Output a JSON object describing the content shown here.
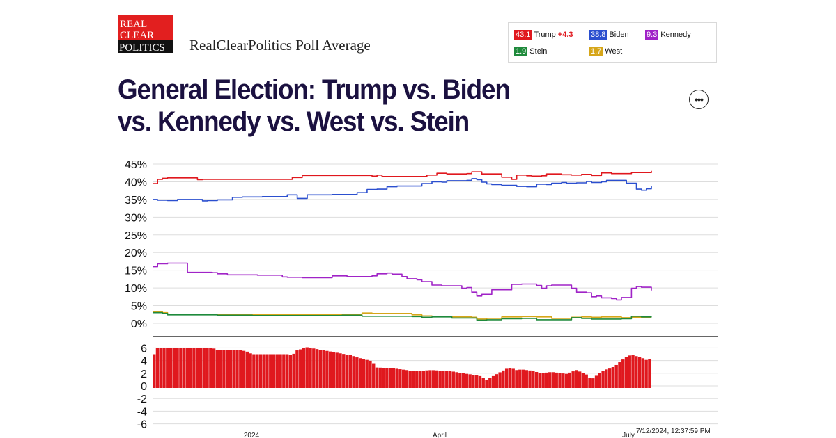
{
  "brand": {
    "logo_lines": [
      "REAL",
      "CLEAR",
      "POLITICS"
    ],
    "caption": "RealClearPolitics Poll Average",
    "colors": {
      "logo_red": "#e21f1f",
      "logo_black": "#111111"
    }
  },
  "legend": [
    {
      "value": "43.1",
      "name": "Trump",
      "lead": "+4.3",
      "color": "#e0181e"
    },
    {
      "value": "38.8",
      "name": "Biden",
      "lead": "",
      "color": "#2b4fcf"
    },
    {
      "value": "9.3",
      "name": "Kennedy",
      "lead": "",
      "color": "#a023c7"
    },
    {
      "value": "1.9",
      "name": "Stein",
      "lead": "",
      "color": "#1f8a3c"
    },
    {
      "value": "1.7",
      "name": "West",
      "lead": "",
      "color": "#d6a619"
    }
  ],
  "title_line1": "General Election: Trump vs. Biden",
  "title_line2": "vs. Kennedy vs. West vs. Stein",
  "more_button_icon": "more-horizontal-icon",
  "more_button_glyph": "•••",
  "timestamp": "7/12/2024, 12:37:59 PM",
  "chart_data": [
    {
      "type": "line",
      "x_tick_labels": [
        "2024",
        "April",
        "July"
      ],
      "y_tick_labels": [
        "45%",
        "40%",
        "35%",
        "30%",
        "25%",
        "20%",
        "15%",
        "10%",
        "5%",
        "0%"
      ],
      "ylim": [
        0,
        45
      ],
      "grid": true,
      "legend_position": "top-right",
      "x_index_range": [
        0,
        100
      ],
      "series": [
        {
          "name": "Trump",
          "color": "#e0181e",
          "x": [
            0,
            1,
            2,
            3,
            8,
            9,
            10,
            20,
            27,
            28,
            30,
            31,
            44,
            45,
            46,
            48,
            54,
            55,
            57,
            59,
            63,
            64,
            66,
            70,
            72,
            73,
            75,
            76,
            78,
            79,
            82,
            84,
            86,
            88,
            90,
            92,
            96,
            98,
            100
          ],
          "y": [
            39.5,
            40.7,
            41.0,
            41.1,
            41.1,
            40.6,
            40.7,
            40.7,
            40.7,
            41.2,
            41.8,
            41.8,
            41.6,
            41.9,
            41.5,
            41.5,
            41.5,
            41.9,
            42.4,
            42.2,
            42.3,
            42.8,
            42.2,
            41.3,
            40.7,
            41.9,
            41.7,
            41.6,
            41.7,
            42.2,
            42.0,
            41.9,
            42.1,
            41.8,
            42.5,
            42.3,
            42.6,
            42.6,
            43.1
          ]
        },
        {
          "name": "Biden",
          "color": "#2b4fcf",
          "x": [
            0,
            1,
            3,
            5,
            8,
            10,
            11,
            13,
            16,
            18,
            22,
            26,
            27,
            29,
            30,
            31,
            36,
            41,
            43,
            45,
            47,
            49,
            54,
            56,
            58,
            59,
            63,
            64,
            65,
            66,
            67,
            68,
            70,
            71,
            73,
            75,
            77,
            79,
            80,
            82,
            83,
            85,
            87,
            88,
            90,
            91,
            93,
            95,
            96,
            97,
            98,
            99,
            100
          ],
          "y": [
            35.0,
            34.8,
            34.7,
            35.0,
            35.0,
            34.6,
            34.7,
            34.9,
            35.6,
            35.7,
            35.8,
            35.8,
            36.3,
            35.3,
            35.3,
            36.3,
            36.4,
            36.9,
            37.8,
            37.9,
            38.6,
            38.8,
            39.5,
            40.0,
            39.9,
            40.3,
            40.4,
            40.9,
            40.6,
            39.9,
            39.4,
            39.2,
            39.0,
            39.0,
            38.7,
            38.6,
            39.3,
            39.2,
            39.6,
            39.8,
            39.6,
            39.7,
            40.1,
            39.8,
            40.0,
            40.4,
            40.4,
            39.6,
            39.6,
            37.9,
            37.6,
            38.0,
            38.8
          ]
        },
        {
          "name": "Kennedy",
          "color": "#a023c7",
          "x": [
            0,
            1,
            2,
            3,
            7,
            8,
            12,
            13,
            15,
            21,
            26,
            27,
            30,
            35,
            36,
            39,
            44,
            45,
            47,
            48,
            50,
            51,
            53,
            54,
            56,
            58,
            62,
            63,
            64,
            65,
            66,
            68,
            72,
            74,
            77,
            78,
            79,
            80,
            84,
            85,
            87,
            88,
            89,
            90,
            92,
            93,
            94,
            96,
            97,
            98,
            100
          ],
          "y": [
            16.0,
            16.8,
            16.8,
            17.0,
            14.4,
            14.4,
            14.3,
            14.0,
            13.7,
            13.6,
            13.1,
            13.0,
            12.9,
            12.9,
            13.4,
            13.2,
            13.4,
            14.0,
            14.2,
            13.9,
            13.2,
            12.6,
            12.3,
            11.8,
            10.8,
            10.6,
            9.9,
            10.1,
            8.8,
            7.7,
            8.2,
            9.5,
            11.0,
            11.1,
            10.7,
            9.9,
            10.6,
            10.8,
            9.9,
            8.8,
            8.6,
            7.5,
            7.7,
            7.2,
            7.0,
            6.6,
            7.3,
            9.9,
            10.4,
            10.2,
            9.3
          ]
        },
        {
          "name": "Stein",
          "color": "#1f8a3c",
          "x": [
            0,
            2,
            3,
            10,
            13,
            20,
            30,
            38,
            40,
            42,
            44,
            52,
            54,
            56,
            60,
            64,
            65,
            67,
            70,
            74,
            76,
            77,
            80,
            84,
            86,
            88,
            90,
            94,
            96,
            98,
            100
          ],
          "y": [
            3.0,
            2.8,
            2.4,
            2.4,
            2.3,
            2.2,
            2.2,
            2.3,
            2.3,
            2.0,
            2.0,
            1.9,
            1.7,
            1.8,
            1.5,
            1.5,
            0.9,
            1.0,
            1.3,
            1.4,
            1.4,
            1.0,
            1.0,
            1.6,
            1.4,
            1.2,
            1.2,
            1.3,
            2.0,
            1.8,
            1.9
          ]
        },
        {
          "name": "West",
          "color": "#d6a619",
          "x": [
            0,
            2,
            3,
            10,
            13,
            20,
            30,
            38,
            42,
            44,
            52,
            54,
            56,
            60,
            64,
            65,
            67,
            70,
            74,
            77,
            80,
            84,
            86,
            88,
            90,
            94,
            96,
            98,
            100
          ],
          "y": [
            3.2,
            3.0,
            2.6,
            2.6,
            2.5,
            2.4,
            2.4,
            2.6,
            2.9,
            2.8,
            2.4,
            2.1,
            2.0,
            1.8,
            1.7,
            1.2,
            1.4,
            1.8,
            1.9,
            1.8,
            1.4,
            1.7,
            1.8,
            1.7,
            1.8,
            1.6,
            1.7,
            1.7,
            1.7
          ]
        }
      ]
    },
    {
      "type": "bar",
      "name": "Trump +4.3",
      "color": "#e0181e",
      "y_tick_labels": [
        "6",
        "4",
        "2",
        "0",
        "-2",
        "-4",
        "-6"
      ],
      "ylim": [
        -6,
        7
      ],
      "grid": true,
      "x_index_range": [
        0,
        100
      ],
      "spread_keypoints_x": [
        0,
        1,
        12,
        13,
        18,
        19,
        20,
        26,
        27,
        28,
        29,
        31,
        40,
        41,
        44,
        45,
        48,
        51,
        52,
        56,
        60,
        63,
        64,
        66,
        67,
        68,
        70,
        71,
        72,
        73,
        74,
        76,
        78,
        80,
        83,
        85,
        87,
        88,
        89,
        90,
        91,
        92,
        93,
        95,
        96,
        97,
        98,
        99,
        100
      ],
      "spread_keypoints_y": [
        4.5,
        6.0,
        6.0,
        5.7,
        5.6,
        5.4,
        5.0,
        5.0,
        5.0,
        4.8,
        5.6,
        6.1,
        4.8,
        4.5,
        3.9,
        2.9,
        2.8,
        2.5,
        2.3,
        2.5,
        2.3,
        1.9,
        1.8,
        1.5,
        0.9,
        1.4,
        2.3,
        2.7,
        2.8,
        2.5,
        2.6,
        2.4,
        2.0,
        2.2,
        1.9,
        2.5,
        1.8,
        1.0,
        1.6,
        2.2,
        2.6,
        2.8,
        3.3,
        4.6,
        4.9,
        4.7,
        4.5,
        4.1,
        4.3
      ]
    }
  ]
}
